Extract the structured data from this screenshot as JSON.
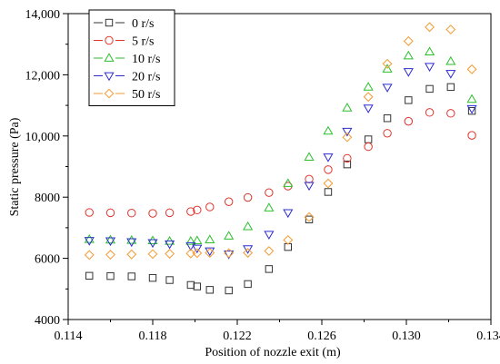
{
  "chart_data": {
    "type": "scatter",
    "title": "",
    "xlabel": "Position of nozzle exit (m)",
    "ylabel": "Static pressure (Pa)",
    "xlim": [
      0.114,
      0.134
    ],
    "ylim": [
      4000,
      14000
    ],
    "x_ticks": [
      "0.114",
      "0.118",
      "0.122",
      "0.126",
      "0.130",
      "0.134"
    ],
    "y_ticks": [
      "4000",
      "6000",
      "8000",
      "10,000",
      "12,000",
      "14,000"
    ],
    "x": [
      0.115,
      0.116,
      0.117,
      0.118,
      0.1188,
      0.1198,
      0.1201,
      0.1207,
      0.1216,
      0.1225,
      0.1235,
      0.1244,
      0.1254,
      0.1263,
      0.1272,
      0.1282,
      0.1291,
      0.1301,
      0.1311,
      0.1321,
      0.1331
    ],
    "legend_position": "top-left",
    "series": [
      {
        "name": "0 r/s",
        "marker": "square",
        "color": "#333333",
        "values": [
          5430,
          5420,
          5410,
          5360,
          5290,
          5130,
          5080,
          4970,
          4950,
          5160,
          5650,
          6370,
          7270,
          8170,
          9070,
          9890,
          10580,
          11170,
          11540,
          11600,
          10820
        ]
      },
      {
        "name": "5 r/s",
        "marker": "circle",
        "color": "#e0342c",
        "values": [
          7500,
          7490,
          7480,
          7470,
          7490,
          7530,
          7580,
          7680,
          7850,
          7990,
          8150,
          8360,
          8590,
          8900,
          9270,
          9650,
          10090,
          10480,
          10770,
          10740,
          10020
        ]
      },
      {
        "name": "10 r/s",
        "marker": "triangle-up",
        "color": "#2bbf2b",
        "values": [
          6620,
          6600,
          6590,
          6580,
          6560,
          6560,
          6580,
          6610,
          6730,
          7040,
          7650,
          8450,
          9310,
          10160,
          10920,
          11600,
          12190,
          12620,
          12750,
          12440,
          11200
        ]
      },
      {
        "name": "20 r/s",
        "marker": "triangle-down",
        "color": "#2c2ccf",
        "values": [
          6580,
          6570,
          6540,
          6510,
          6470,
          6410,
          6330,
          6240,
          6140,
          6310,
          6780,
          7490,
          8380,
          9310,
          10150,
          10910,
          11590,
          12100,
          12270,
          12040,
          10890
        ]
      },
      {
        "name": "50 r/s",
        "marker": "diamond",
        "color": "#f39a2f",
        "values": [
          6110,
          6120,
          6130,
          6140,
          6150,
          6160,
          6170,
          6180,
          6170,
          6180,
          6240,
          6600,
          7350,
          8450,
          9960,
          11280,
          12360,
          13100,
          13560,
          13480,
          12180
        ]
      }
    ]
  }
}
